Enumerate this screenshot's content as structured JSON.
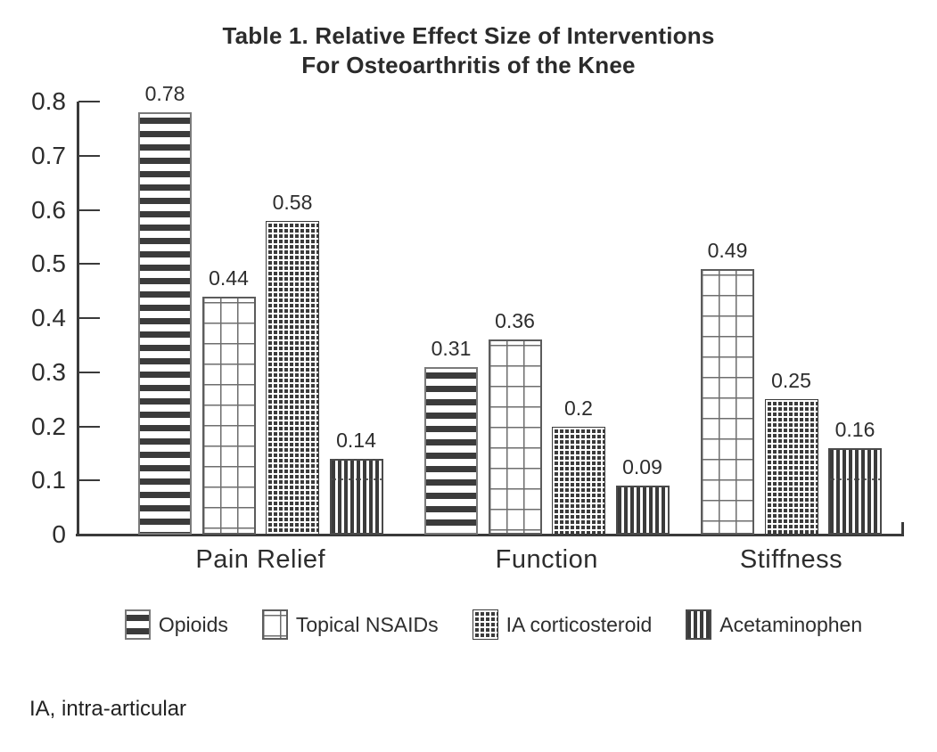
{
  "figure": {
    "footnote": "IA, intra-articular"
  },
  "chart_data": {
    "type": "bar",
    "title": "Table 1. Relative Effect Size of Interventions For Osteoarthritis of the Knee",
    "title_lines": [
      "Table 1. Relative Effect Size of Interventions",
      "For Osteoarthritis of the Knee"
    ],
    "categories": [
      "Pain Relief",
      "Function",
      "Stiffness"
    ],
    "series": [
      {
        "name": "Opioids",
        "pattern": "horizontal-stripes",
        "values": [
          0.78,
          0.31,
          null
        ],
        "labels": [
          "0.78",
          "0.31",
          null
        ]
      },
      {
        "name": "Topical NSAIDs",
        "pattern": "grid",
        "values": [
          0.44,
          0.36,
          0.49
        ],
        "labels": [
          "0.44",
          "0.36",
          "0.49"
        ]
      },
      {
        "name": "IA corticosteroid",
        "pattern": "fine-dots",
        "values": [
          0.58,
          0.2,
          0.25
        ],
        "labels": [
          "0.58",
          "0.2",
          "0.25"
        ]
      },
      {
        "name": "Acetaminophen",
        "pattern": "vertical-stripes",
        "values": [
          0.14,
          0.09,
          0.16
        ],
        "labels": [
          "0.14",
          "0.09",
          "0.16"
        ]
      }
    ],
    "ylim": [
      0,
      0.8
    ],
    "ytick_labels": [
      "0",
      "0.1",
      "0.2",
      "0.3",
      "0.4",
      "0.5",
      "0.6",
      "0.7",
      "0.8"
    ],
    "ytick_step": 0.1,
    "grid": false,
    "legend_position": "bottom",
    "value_labels_shown": true,
    "ink_color": "#3b3b3b",
    "background_color": "#ffffff"
  }
}
